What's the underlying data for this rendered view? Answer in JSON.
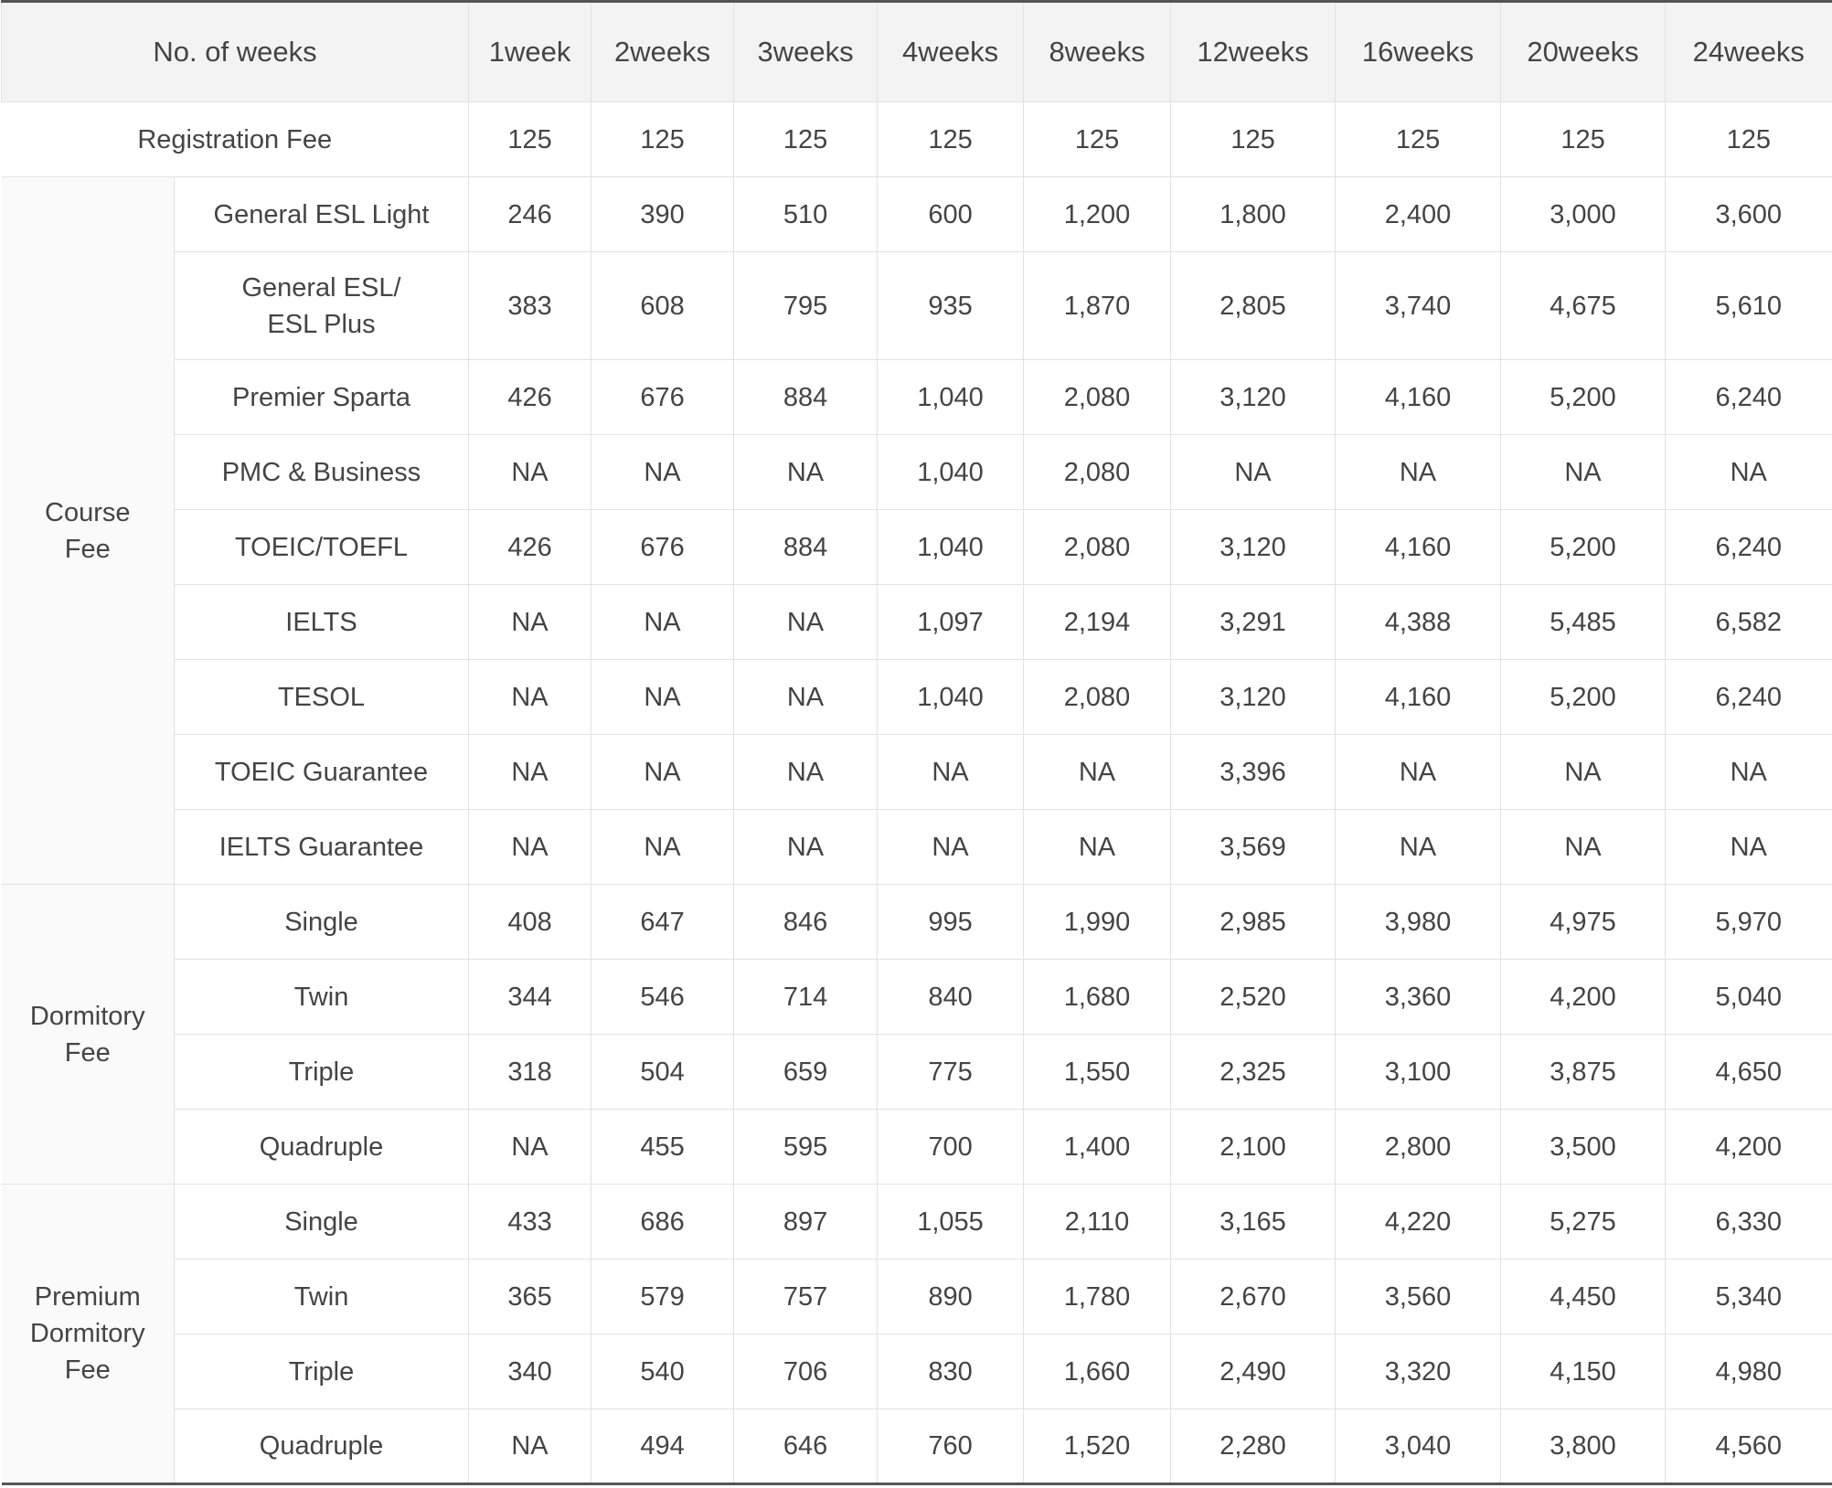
{
  "header": [
    "No. of weeks",
    "1week",
    "2weeks",
    "3weeks",
    "4weeks",
    "8weeks",
    "12weeks",
    "16weeks",
    "20weeks",
    "24weeks"
  ],
  "registration": {
    "label": "Registration Fee",
    "values": [
      "125",
      "125",
      "125",
      "125",
      "125",
      "125",
      "125",
      "125",
      "125"
    ]
  },
  "groups": [
    {
      "label": "Course\nFee",
      "rows": [
        {
          "label": "General ESL Light",
          "values": [
            "246",
            "390",
            "510",
            "600",
            "1,200",
            "1,800",
            "2,400",
            "3,000",
            "3,600"
          ]
        },
        {
          "label": "General ESL/\nESL Plus",
          "values": [
            "383",
            "608",
            "795",
            "935",
            "1,870",
            "2,805",
            "3,740",
            "4,675",
            "5,610"
          ]
        },
        {
          "label": "Premier Sparta",
          "values": [
            "426",
            "676",
            "884",
            "1,040",
            "2,080",
            "3,120",
            "4,160",
            "5,200",
            "6,240"
          ]
        },
        {
          "label": "PMC & Business",
          "values": [
            "NA",
            "NA",
            "NA",
            "1,040",
            "2,080",
            "NA",
            "NA",
            "NA",
            "NA"
          ]
        },
        {
          "label": "TOEIC/TOEFL",
          "values": [
            "426",
            "676",
            "884",
            "1,040",
            "2,080",
            "3,120",
            "4,160",
            "5,200",
            "6,240"
          ]
        },
        {
          "label": "IELTS",
          "values": [
            "NA",
            "NA",
            "NA",
            "1,097",
            "2,194",
            "3,291",
            "4,388",
            "5,485",
            "6,582"
          ]
        },
        {
          "label": "TESOL",
          "values": [
            "NA",
            "NA",
            "NA",
            "1,040",
            "2,080",
            "3,120",
            "4,160",
            "5,200",
            "6,240"
          ]
        },
        {
          "label": "TOEIC Guarantee",
          "values": [
            "NA",
            "NA",
            "NA",
            "NA",
            "NA",
            "3,396",
            "NA",
            "NA",
            "NA"
          ]
        },
        {
          "label": "IELTS Guarantee",
          "values": [
            "NA",
            "NA",
            "NA",
            "NA",
            "NA",
            "3,569",
            "NA",
            "NA",
            "NA"
          ]
        }
      ]
    },
    {
      "label": "Dormitory\nFee",
      "rows": [
        {
          "label": "Single",
          "values": [
            "408",
            "647",
            "846",
            "995",
            "1,990",
            "2,985",
            "3,980",
            "4,975",
            "5,970"
          ]
        },
        {
          "label": "Twin",
          "values": [
            "344",
            "546",
            "714",
            "840",
            "1,680",
            "2,520",
            "3,360",
            "4,200",
            "5,040"
          ]
        },
        {
          "label": "Triple",
          "values": [
            "318",
            "504",
            "659",
            "775",
            "1,550",
            "2,325",
            "3,100",
            "3,875",
            "4,650"
          ]
        },
        {
          "label": "Quadruple",
          "values": [
            "NA",
            "455",
            "595",
            "700",
            "1,400",
            "2,100",
            "2,800",
            "3,500",
            "4,200"
          ]
        }
      ]
    },
    {
      "label": "Premium\nDormitory\nFee",
      "rows": [
        {
          "label": "Single",
          "values": [
            "433",
            "686",
            "897",
            "1,055",
            "2,110",
            "3,165",
            "4,220",
            "5,275",
            "6,330"
          ]
        },
        {
          "label": "Twin",
          "values": [
            "365",
            "579",
            "757",
            "890",
            "1,780",
            "2,670",
            "3,560",
            "4,450",
            "5,340"
          ]
        },
        {
          "label": "Triple",
          "values": [
            "340",
            "540",
            "706",
            "830",
            "1,660",
            "2,490",
            "3,320",
            "4,150",
            "4,980"
          ]
        },
        {
          "label": "Quadruple",
          "values": [
            "NA",
            "494",
            "646",
            "760",
            "1,520",
            "2,280",
            "3,040",
            "3,800",
            "4,560"
          ]
        }
      ]
    }
  ]
}
